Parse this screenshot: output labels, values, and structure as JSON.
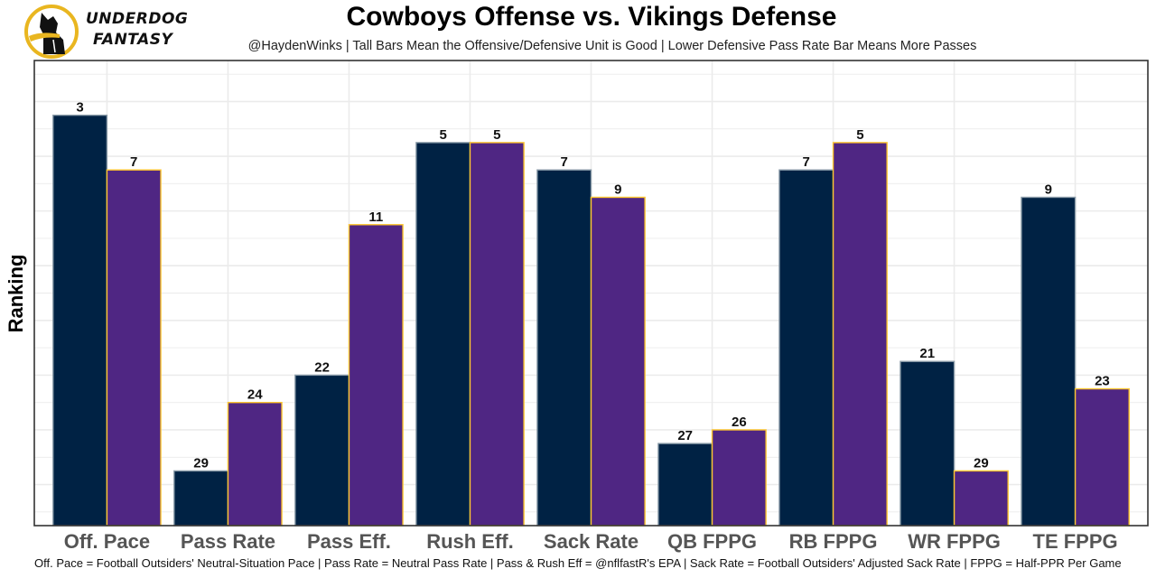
{
  "brand": {
    "line1": "UNDERDOG",
    "line2": "FANTASY",
    "logo_icon": "underdog-dog-logo-icon",
    "colors": {
      "gold": "#E9B620",
      "black": "#111111"
    }
  },
  "chart_data": {
    "type": "bar",
    "title": "Cowboys Offense vs. Vikings Defense",
    "subtitle": "@HaydenWinks | Tall Bars Mean the Offensive/Defensive Unit is Good | Lower Defensive Pass Rate Bar Means More Passes",
    "xlabel": "",
    "ylabel": "Ranking",
    "caption": "Off. Pace = Football Outsiders' Neutral-Situation Pace | Pass Rate = Neutral Pass Rate | Pass & Rush Eff = @nflfastR's EPA | Sack Rate = Football Outsiders' Adjusted Sack Rate | FPPG = Half-PPR Per Game",
    "categories": [
      "Off. Pace",
      "Pass Rate",
      "Pass Eff.",
      "Rush Eff.",
      "Sack Rate",
      "QB FPPG",
      "RB FPPG",
      "WR FPPG",
      "TE FPPG"
    ],
    "bar_height_rule": "33 - rank",
    "ylim": [
      0,
      34
    ],
    "y_ticks_shown": false,
    "grid": true,
    "legend": "none",
    "series": [
      {
        "name": "Cowboys Offense",
        "color": "#002244",
        "border": "#8A9BA8",
        "ranks": [
          3,
          29,
          22,
          5,
          7,
          27,
          7,
          21,
          9
        ]
      },
      {
        "name": "Vikings Defense",
        "color": "#4F2683",
        "border": "#FFC62F",
        "ranks": [
          7,
          24,
          11,
          5,
          9,
          26,
          5,
          29,
          23
        ]
      }
    ]
  }
}
